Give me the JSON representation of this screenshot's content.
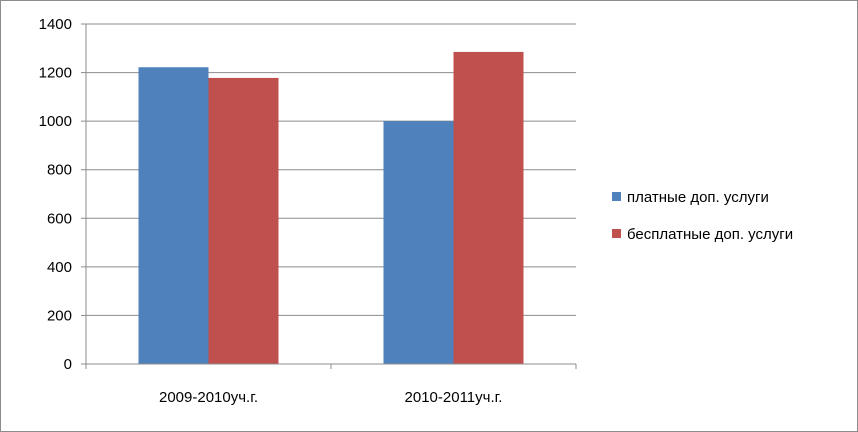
{
  "chart_data": {
    "type": "bar",
    "categories": [
      "2009-2010уч.г.",
      "2010-2011уч.г."
    ],
    "series": [
      {
        "name": "платные доп. услуги",
        "values": [
          1222,
          1000
        ],
        "color": "#4f81bd"
      },
      {
        "name": "бесплатные доп. услуги",
        "values": [
          1178,
          1285
        ],
        "color": "#c0504d"
      }
    ],
    "ylim": [
      0,
      1400
    ],
    "yticks": [
      0,
      200,
      400,
      600,
      800,
      1000,
      1200,
      1400
    ],
    "grid": true,
    "legend_position": "right",
    "xlabel": "",
    "ylabel": "",
    "title": ""
  }
}
